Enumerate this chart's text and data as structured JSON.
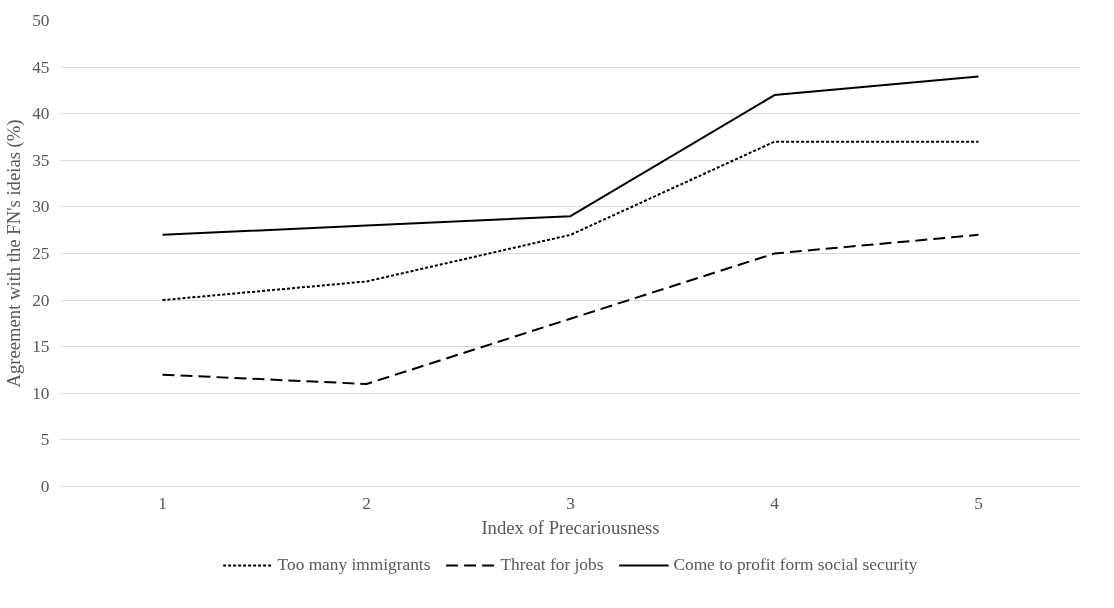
{
  "chart_data": {
    "type": "line",
    "xlabel": "Index of Precariousness",
    "ylabel": "Agreement with the FN's ideias (%)",
    "categories": [
      "1",
      "2",
      "3",
      "4",
      "5"
    ],
    "series": [
      {
        "name": "Too many immigrants",
        "color": "#000000",
        "line_style": "dotted",
        "values": [
          20,
          22,
          27,
          37,
          37
        ]
      },
      {
        "name": "Threat for jobs",
        "color": "#000000",
        "line_style": "dashed",
        "values": [
          12,
          11,
          18,
          25,
          27
        ]
      },
      {
        "name": "Come to profit form social security",
        "color": "#000000",
        "line_style": "solid",
        "values": [
          27,
          28,
          29,
          42,
          44
        ]
      }
    ],
    "ylim": [
      0,
      50
    ],
    "yticks": [
      0,
      5,
      10,
      15,
      20,
      25,
      30,
      35,
      40,
      45,
      50
    ],
    "grid": "y",
    "legend": "bottom",
    "marker": "none"
  }
}
